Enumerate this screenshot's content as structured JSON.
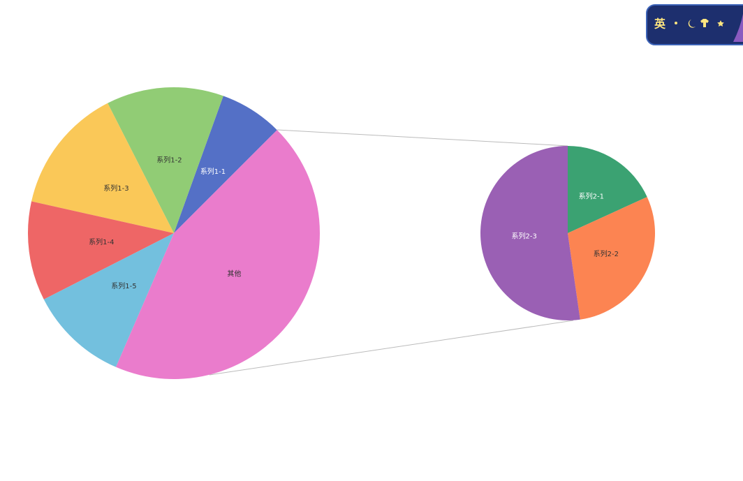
{
  "chart_data": {
    "type": "pie",
    "pies": [
      {
        "categories": [
          "系列1-1",
          "系列1-2",
          "系列1-3",
          "系列1-4",
          "系列1-5",
          "其他"
        ],
        "values": [
          7,
          13,
          14,
          11,
          11,
          44
        ],
        "colors": [
          "#5470c6",
          "#91cc75",
          "#fac858",
          "#ee6666",
          "#73c0de",
          "#ea7ccc"
        ],
        "label_colors": [
          "#ffffff",
          "#333333",
          "#333333",
          "#333333",
          "#333333",
          "#333333"
        ]
      },
      {
        "categories": [
          "系列2-1",
          "系列2-2",
          "系列2-3"
        ],
        "values": [
          8,
          13,
          23
        ],
        "colors": [
          "#3ba272",
          "#fc8452",
          "#9a60b4"
        ],
        "label_colors": [
          "#ffffff",
          "#333333",
          "#ffffff"
        ]
      }
    ]
  },
  "toolbar": {
    "label": "英"
  }
}
